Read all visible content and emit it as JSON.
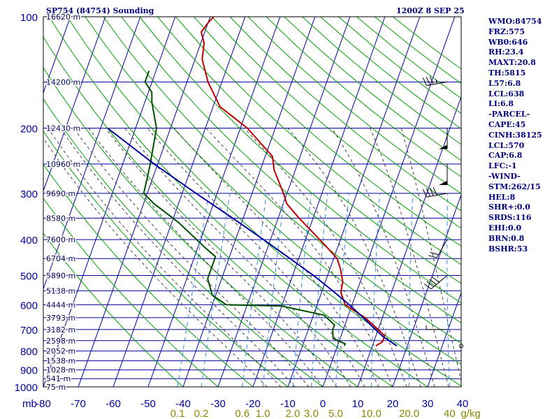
{
  "header": {
    "title_left": "SP754 (84754) Sounding",
    "title_right": "1200Z  8 SEP 25"
  },
  "indices": [
    "WMO:84754",
    "FRZ:575",
    "WB0:646",
    "RH:23.4",
    "MAXT:20.8",
    "TH:5815",
    "L57:6.8",
    "LCL:638",
    "LI:6.8",
    "-PARCEL-",
    "CAPE:45",
    "CINH:38125",
    "LCL:570",
    "CAP:6.8",
    "LFC:-1",
    "-WIND-",
    "STM:262/15",
    "HEL:8",
    "SHR+:0.0",
    "SRDS:116",
    "EHI:0.0",
    "BRN:0.8",
    "BSHR:53"
  ],
  "colors": {
    "frame": "#000000",
    "isobar": "#0000a0",
    "dry_adiabat": "#00a000",
    "moist_adiabat": "#404040",
    "mixing_ratio": "#2b8be6",
    "temperature": "#c00000",
    "dewpoint": "#005000",
    "parcel": "#0000a0",
    "wind_barb": "#000000"
  },
  "chart_data": {
    "type": "skew-t",
    "title": "SP754 (84754) Sounding",
    "x_unit_label": "mb",
    "pressure_axis": {
      "range": [
        100,
        1000
      ],
      "scale": "log",
      "ticks": [
        100,
        200,
        300,
        400,
        500,
        600,
        700,
        800,
        900,
        1000
      ]
    },
    "minor_isobars": [
      150,
      250,
      350,
      450,
      550,
      650,
      750,
      850,
      950
    ],
    "temperature_axis": {
      "unit": "C",
      "range": [
        -80,
        40
      ],
      "ticks": [
        -80,
        -70,
        -60,
        -50,
        -40,
        -30,
        -20,
        -10,
        0,
        10,
        20,
        30,
        40
      ],
      "tick_labels": [
        "-80",
        "-70",
        "-60",
        "-50",
        "-40",
        "-30",
        "-20",
        "-10",
        "0",
        "10",
        "20",
        "30",
        "40"
      ]
    },
    "height_labels": [
      {
        "p": 100,
        "label": "16620 m"
      },
      {
        "p": 150,
        "label": "14200 m"
      },
      {
        "p": 200,
        "label": "12430 m"
      },
      {
        "p": 250,
        "label": "10960 m"
      },
      {
        "p": 300,
        "label": "9690 m"
      },
      {
        "p": 350,
        "label": "8580 m"
      },
      {
        "p": 400,
        "label": "7600 m"
      },
      {
        "p": 450,
        "label": "6704 m"
      },
      {
        "p": 500,
        "label": "5890 m"
      },
      {
        "p": 550,
        "label": "5138 m"
      },
      {
        "p": 600,
        "label": "4444 m"
      },
      {
        "p": 650,
        "label": "3793 m"
      },
      {
        "p": 700,
        "label": "3182 m"
      },
      {
        "p": 750,
        "label": "2598 m"
      },
      {
        "p": 800,
        "label": "2052 m"
      },
      {
        "p": 850,
        "label": "1538 m"
      },
      {
        "p": 900,
        "label": "1028 m"
      },
      {
        "p": 950,
        "label": "541 m"
      },
      {
        "p": 1000,
        "label": "75 m"
      }
    ],
    "mixing_ratio_labels": {
      "unit": "g/kg",
      "values": [
        0.1,
        0.2,
        0.6,
        1.0,
        2.0,
        3.0,
        5.0,
        10.0,
        20.0,
        40
      ],
      "labels": [
        "0.1",
        "0.2",
        "0.6",
        "1.0",
        "2.0",
        "3.0",
        "5.0",
        "10.0",
        "20.0",
        "40"
      ]
    },
    "series": [
      {
        "role": "temperature",
        "points": [
          [
            775,
            11
          ],
          [
            755,
            12.5
          ],
          [
            728,
            12.5
          ],
          [
            700,
            10
          ],
          [
            650,
            5
          ],
          [
            600,
            -2
          ],
          [
            555,
            -4.5
          ],
          [
            520,
            -5
          ],
          [
            480,
            -7
          ],
          [
            450,
            -9
          ],
          [
            420,
            -13
          ],
          [
            380,
            -19
          ],
          [
            350,
            -24
          ],
          [
            320,
            -29
          ],
          [
            300,
            -31
          ],
          [
            260,
            -36
          ],
          [
            238,
            -38
          ],
          [
            200,
            -48
          ],
          [
            175,
            -58
          ],
          [
            150,
            -64
          ],
          [
            130,
            -68
          ],
          [
            118,
            -69
          ],
          [
            110,
            -71
          ],
          [
            104,
            -70
          ],
          [
            100,
            -69
          ]
        ]
      },
      {
        "role": "dewpoint",
        "points": [
          [
            775,
            2
          ],
          [
            765,
            2
          ],
          [
            740,
            -2
          ],
          [
            700,
            -3
          ],
          [
            680,
            -3
          ],
          [
            640,
            -7
          ],
          [
            605,
            -20
          ],
          [
            600,
            -36
          ],
          [
            565,
            -41
          ],
          [
            510,
            -44
          ],
          [
            470,
            -44
          ],
          [
            445,
            -44
          ],
          [
            420,
            -48
          ],
          [
            360,
            -58
          ],
          [
            320,
            -67
          ],
          [
            300,
            -71
          ],
          [
            255,
            -72
          ],
          [
            200,
            -74
          ],
          [
            170,
            -78
          ],
          [
            160,
            -79
          ],
          [
            150,
            -82
          ],
          [
            140,
            -82
          ]
        ]
      },
      {
        "role": "parcel",
        "points": [
          [
            775,
            17
          ],
          [
            730,
            12
          ],
          [
            700,
            9.2
          ],
          [
            650,
            4.5
          ],
          [
            600,
            -0.8
          ],
          [
            550,
            -7
          ],
          [
            500,
            -14
          ],
          [
            450,
            -22.5
          ],
          [
            400,
            -32
          ],
          [
            350,
            -43
          ],
          [
            300,
            -56
          ],
          [
            250,
            -71
          ],
          [
            200,
            -88
          ]
        ]
      }
    ],
    "wind_barbs": [
      {
        "p": 150,
        "direction": 260,
        "speed": 35
      },
      {
        "p": 200,
        "direction": 180,
        "speed": 50
      },
      {
        "p": 250,
        "direction": 180,
        "speed": 50
      },
      {
        "p": 300,
        "direction": 260,
        "speed": 40
      },
      {
        "p": 400,
        "direction": 210,
        "speed": 20
      },
      {
        "p": 500,
        "direction": 230,
        "speed": 40
      },
      {
        "p": 700,
        "direction": 270,
        "speed": 5
      },
      {
        "p": 775,
        "direction": 0,
        "speed": 0
      }
    ]
  }
}
